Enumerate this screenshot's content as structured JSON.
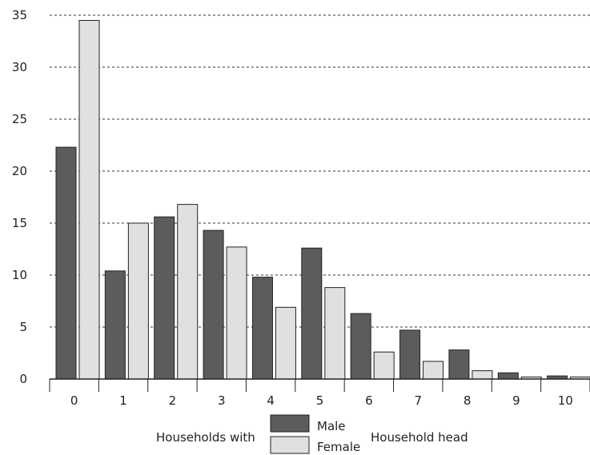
{
  "chart_data": {
    "type": "bar",
    "categories": [
      "0",
      "1",
      "2",
      "3",
      "4",
      "5",
      "6",
      "7",
      "8",
      "9",
      "10"
    ],
    "series": [
      {
        "name": "Male",
        "values": [
          22.3,
          10.4,
          15.6,
          14.3,
          9.8,
          12.6,
          6.3,
          4.7,
          2.8,
          0.6,
          0.3
        ],
        "color": "#5c5c5c"
      },
      {
        "name": "Female",
        "values": [
          34.5,
          15.0,
          16.8,
          12.7,
          6.9,
          8.8,
          2.6,
          1.7,
          0.8,
          0.2,
          0.2
        ],
        "color": "#e0e0e0"
      }
    ],
    "ylim": [
      0,
      35
    ],
    "yticks": [
      0,
      5,
      10,
      15,
      20,
      25,
      30,
      35
    ],
    "grid": "horizontal dashed",
    "legend": {
      "prefix": "Households with",
      "suffix": "Household head",
      "placement": "bottom-center"
    }
  }
}
